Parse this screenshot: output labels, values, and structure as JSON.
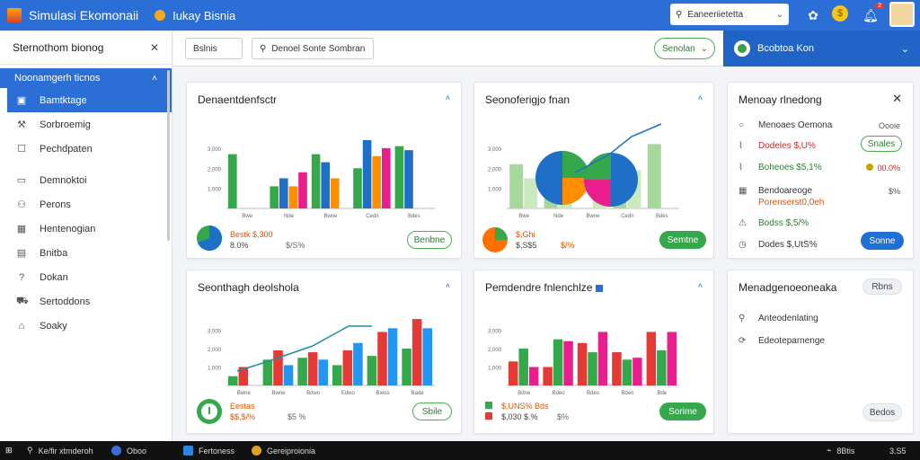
{
  "titlebar": {
    "app_title": "Simulasi Ekomonaii",
    "biz_title": "Iukay Bisnia",
    "search_value": "Eaneeriietetta",
    "icons": [
      "app-logo-icon",
      "fan-icon",
      "coin-icon",
      "notification-icon",
      "avatar"
    ],
    "badge_count": "2"
  },
  "sidebar": {
    "header": "Sternothom bionog",
    "group_label": "Noonamgerh ticnos",
    "items_top": [
      {
        "label": "Bamtktage",
        "icon": "box-icon",
        "active": true
      },
      {
        "label": "Sorbroemig",
        "icon": "tools-icon",
        "active": false
      },
      {
        "label": "Pechdpaten",
        "icon": "square-icon",
        "active": false
      }
    ],
    "items_bottom": [
      {
        "label": "Demnoktoi",
        "icon": "folder-icon"
      },
      {
        "label": "Perons",
        "icon": "people-icon"
      },
      {
        "label": "Hentenogian",
        "icon": "grid-icon"
      },
      {
        "label": "Bnitba",
        "icon": "chart-icon"
      },
      {
        "label": "Dokan",
        "icon": "help-icon"
      },
      {
        "label": "Sertoddons",
        "icon": "truck-icon"
      },
      {
        "label": "Soaky",
        "icon": "shopping-icon"
      }
    ]
  },
  "toolbar": {
    "btn1": "Bslnis",
    "search_value": "Denoel Sonte Sombran",
    "green_btn": "Senolan",
    "blue_panel_label": "Bcobtoa Kon"
  },
  "cards": {
    "c1": {
      "title": "Denaentdenfsctr",
      "legend_a": "Bestk $,300",
      "legend_b": "8.0%",
      "legend_c": "$/S%",
      "pill": "Benbne"
    },
    "c2": {
      "title": "Seonoferigjo fnan",
      "legend_a": "$,Ghi",
      "legend_b": "$,S$5",
      "legend_c": "$/%",
      "pill": "Semtne"
    },
    "c3": {
      "title": "Seonthagh deolshola",
      "legend_a": "Eestas",
      "legend_b": "$$,$/%",
      "legend_c": "$5 %",
      "pill": "Sbile"
    },
    "c4": {
      "title": "Pemdendre fnlenchlze",
      "legend_a": "$,UNS% Bds",
      "legend_b": "$,030 $.%",
      "legend_c": "$%",
      "pill": "Sorime"
    }
  },
  "right_panel_1": {
    "title": "Menoay rlnedong",
    "rows": [
      {
        "label": "Menoaes Oemona",
        "value": "Oooie",
        "icon": "circle-icon"
      },
      {
        "label": "Dodeles $,U%",
        "value": "Snales",
        "icon": "tag-icon"
      },
      {
        "label": "Boheoes $5,1%",
        "value": "00.0%",
        "icon": "tag-icon"
      },
      {
        "label": "Bendoareoge",
        "value": "$%",
        "icon": "calendar-icon"
      },
      {
        "label": "Porenserst0,0eh",
        "value": "",
        "icon": "cart-icon"
      },
      {
        "label": "Bodss $,5/%",
        "value": "Sonne",
        "icon": "alert-icon"
      },
      {
        "label": "Dodes $,UtS%",
        "value": "",
        "icon": "clock-icon"
      }
    ],
    "row2_pill": "Snales",
    "bottom_pill": "Sonne"
  },
  "right_panel_2": {
    "title": "Menadgenoeoneaka",
    "title_pill": "Rbns",
    "rows": [
      {
        "label": "Anteodenlating",
        "icon": "search-icon"
      },
      {
        "label": "Edeoteparnenge",
        "icon": "refresh-icon"
      }
    ],
    "bottom_pill": "Bedos"
  },
  "taskbar": {
    "search": "Ke/fir xtmderoh",
    "items": [
      "Oboo",
      "Fertoness",
      "Gereiproionia"
    ],
    "tray": [
      "8Btis",
      "3.S5"
    ]
  },
  "chart_data": [
    {
      "type": "bar",
      "categories": [
        "Bwe",
        "Nde",
        "Bwne",
        "Cedn",
        "Bdes"
      ],
      "series": [
        {
          "values": [
            2700,
            1100,
            2700,
            2000,
            3100
          ]
        },
        {
          "values": [
            0,
            1500,
            2300,
            3400,
            2900
          ]
        },
        {
          "values": [
            0,
            1100,
            1500,
            2600,
            0
          ]
        },
        {
          "values": [
            0,
            1800,
            0,
            3000,
            0
          ]
        }
      ],
      "ylim": [
        0,
        3800
      ]
    },
    {
      "type": "bar",
      "categories": [
        "Bwe",
        "Nde",
        "Bwne",
        "Cedn",
        "Bdes"
      ],
      "series": [
        {
          "name": "",
          "values": [
            2200,
            1800,
            0,
            2200,
            3200
          ]
        },
        {
          "name": "",
          "values": [
            1500,
            2400,
            1200,
            1900,
            0
          ]
        }
      ],
      "ylim": [
        0,
        3800
      ]
    },
    {
      "type": "bar",
      "categories": [
        "Bwne",
        "Bwne",
        "Bdwo",
        "Edwo",
        "Bwos",
        "Bade"
      ],
      "series": [
        {
          "values": [
            500,
            1400,
            1500,
            1100,
            1600,
            2000
          ]
        },
        {
          "values": [
            1000,
            1900,
            1800,
            1900,
            2900,
            3600
          ]
        },
        {
          "values": [
            0,
            1100,
            1400,
            2300,
            3100,
            3100
          ]
        }
      ],
      "ylim": [
        0,
        3800
      ]
    },
    {
      "type": "bar",
      "categories": [
        "Bdne",
        "Bdeo",
        "Bdeo",
        "Bdeo",
        "Bde"
      ],
      "series": [
        {
          "values": [
            1300,
            1000,
            2300,
            1800,
            2900
          ]
        },
        {
          "values": [
            2000,
            2500,
            1800,
            1400,
            1900
          ]
        },
        {
          "values": [
            1000,
            2400,
            2900,
            1500,
            2900
          ]
        }
      ],
      "ylim": [
        0,
        3800
      ]
    }
  ]
}
